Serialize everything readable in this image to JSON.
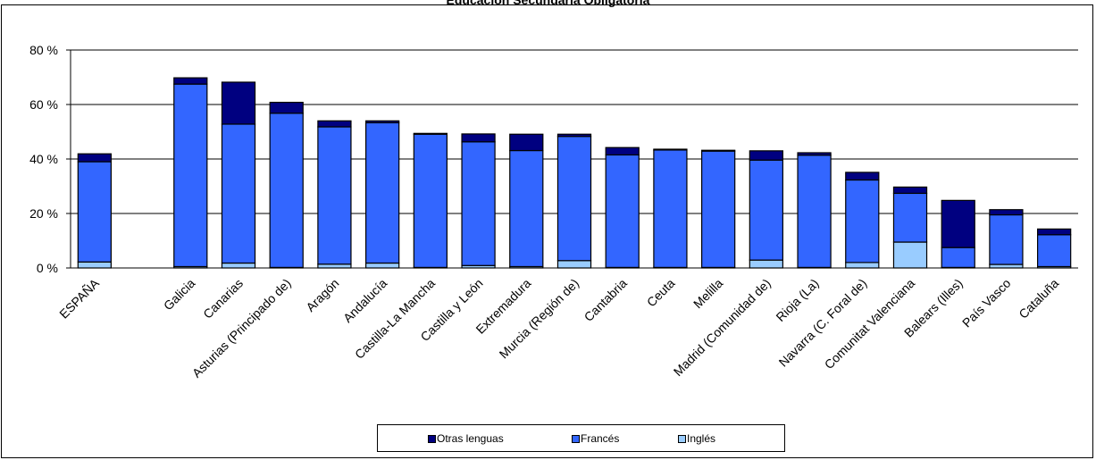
{
  "chart_data": {
    "type": "bar",
    "stacked": true,
    "title": "Educación Secundaria Obligatoria",
    "xlabel": "",
    "ylabel": "",
    "ylim": [
      0,
      80
    ],
    "yticks": [
      "0 %",
      "20 %",
      "40 %",
      "60 %",
      "80 %"
    ],
    "ytick_values": [
      0,
      20,
      40,
      60,
      80
    ],
    "grid": true,
    "legend_placement": "bottom",
    "categories": [
      "ESPAÑA",
      "Galicia",
      "Canarias",
      "Asturias (Principado de)",
      "Aragón",
      "Andalucía",
      "Castilla-La Mancha",
      "Castilla y León",
      "Extremadura",
      "Murcia (Región de)",
      "Cantabria",
      "Ceuta",
      "Melilla",
      "Madrid (Comunidad de)",
      "Rioja (La)",
      "Navarra (C. Foral de)",
      "Comunitat Valenciana",
      "Balears (Illes)",
      "País Vasco",
      "Cataluña"
    ],
    "category_gap_after_first": true,
    "series": [
      {
        "name": "Inglés",
        "color": "#99CCFF",
        "values": [
          2.2,
          0.5,
          1.8,
          0.2,
          1.4,
          1.8,
          0.2,
          0.9,
          0.5,
          2.7,
          0.2,
          0.2,
          0.2,
          2.9,
          0.2,
          2.0,
          9.5,
          0.2,
          1.3,
          0.5
        ]
      },
      {
        "name": "Francés",
        "color": "#3366FF",
        "values": [
          36.8,
          67.0,
          51.0,
          56.6,
          50.4,
          51.5,
          48.9,
          45.4,
          42.6,
          45.6,
          41.3,
          43.1,
          42.7,
          36.7,
          41.2,
          30.3,
          17.9,
          7.3,
          18.2,
          11.7
        ]
      },
      {
        "name": "Otras lenguas",
        "color": "#000080",
        "values": [
          2.9,
          2.3,
          15.4,
          4.0,
          2.2,
          0.7,
          0.3,
          2.9,
          6.0,
          0.8,
          2.7,
          0.3,
          0.3,
          3.4,
          0.9,
          2.8,
          2.3,
          17.3,
          1.9,
          2.1
        ]
      }
    ],
    "legend_order": [
      "Otras lenguas",
      "Francés",
      "Inglés"
    ]
  }
}
